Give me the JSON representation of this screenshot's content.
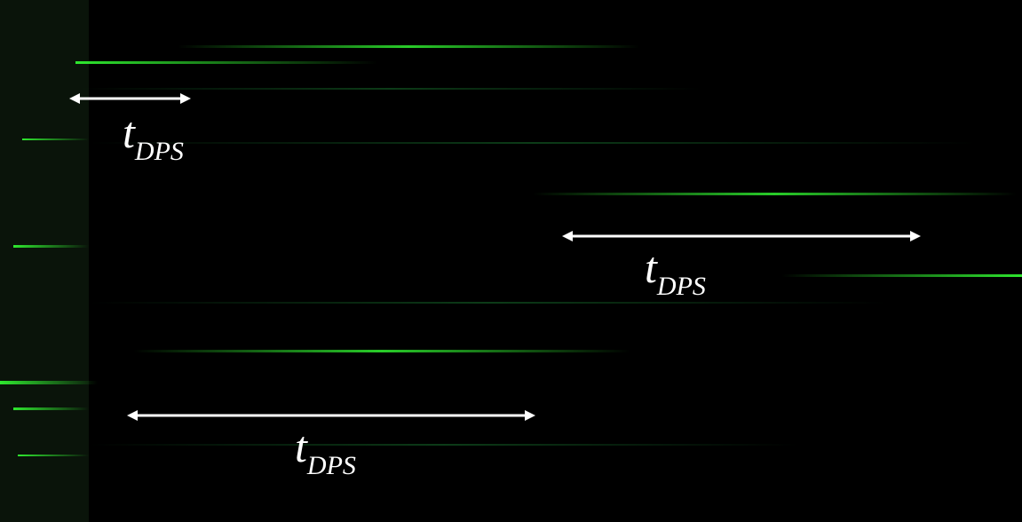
{
  "labels": [
    {
      "symbol": "t",
      "subscript": "DPS"
    },
    {
      "symbol": "t",
      "subscript": "DPS"
    },
    {
      "symbol": "t",
      "subscript": "DPS"
    }
  ]
}
